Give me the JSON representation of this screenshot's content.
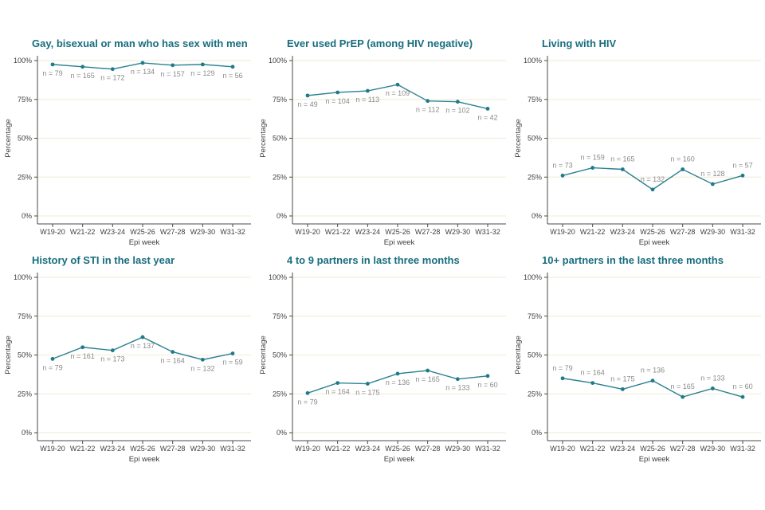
{
  "axes": {
    "xlabel": "Epi week",
    "ylabel": "Percentage",
    "x_categories": [
      "W19-20",
      "W21-22",
      "W23-24",
      "W25-26",
      "W27-28",
      "W29-30",
      "W31-32"
    ],
    "y_tick_labels": [
      "0%",
      "25%",
      "50%",
      "75%",
      "100%"
    ],
    "y_tick_values": [
      0,
      25,
      50,
      75,
      100
    ],
    "ylim": [
      0,
      100
    ],
    "grid": "horizontal-only",
    "legend": "none"
  },
  "style": {
    "background": "#ffffff",
    "line_color": "#2b8291",
    "marker_color": "#1f7a8a",
    "title_color": "#176d7f",
    "n_label_color": "#8a8a8a",
    "axis_text_color": "#3f3f3f",
    "axis_line_color": "#4a4a4a",
    "gridline_color": "#f2eedd"
  },
  "chart_data": [
    {
      "type": "line",
      "title": "Gay, bisexual or man who has sex with men",
      "categories": [
        "W19-20",
        "W21-22",
        "W23-24",
        "W25-26",
        "W27-28",
        "W29-30",
        "W31-32"
      ],
      "values": [
        97.5,
        96,
        94.5,
        98.5,
        97,
        97.5,
        96
      ],
      "n_labels": [
        "n = 79",
        "n = 165",
        "n = 172",
        "n = 134",
        "n = 157",
        "n = 129",
        "n = 56"
      ],
      "xlabel": "Epi week",
      "ylabel": "Percentage",
      "ylim": [
        0,
        100
      ],
      "label_position": "below"
    },
    {
      "type": "line",
      "title": "Ever used PrEP (among HIV negative)",
      "categories": [
        "W19-20",
        "W21-22",
        "W23-24",
        "W25-26",
        "W27-28",
        "W29-30",
        "W31-32"
      ],
      "values": [
        77.5,
        79.5,
        80.5,
        84.5,
        74,
        73.5,
        69
      ],
      "n_labels": [
        "n = 49",
        "n = 104",
        "n = 113",
        "n = 109",
        "n = 112",
        "n = 102",
        "n = 42"
      ],
      "xlabel": "Epi week",
      "ylabel": "Percentage",
      "ylim": [
        0,
        100
      ],
      "label_position": "below"
    },
    {
      "type": "line",
      "title": "Living with HIV",
      "categories": [
        "W19-20",
        "W21-22",
        "W23-24",
        "W25-26",
        "W27-28",
        "W29-30",
        "W31-32"
      ],
      "values": [
        26,
        31,
        30,
        17,
        30,
        20.5,
        26
      ],
      "n_labels": [
        "n = 73",
        "n = 159",
        "n = 165",
        "n = 132",
        "n = 160",
        "n = 128",
        "n = 57"
      ],
      "xlabel": "Epi week",
      "ylabel": "Percentage",
      "ylim": [
        0,
        100
      ],
      "label_position": "above"
    },
    {
      "type": "line",
      "title": "History of STI in the last year",
      "categories": [
        "W19-20",
        "W21-22",
        "W23-24",
        "W25-26",
        "W27-28",
        "W29-30",
        "W31-32"
      ],
      "values": [
        47.5,
        55,
        53,
        61.5,
        52,
        47,
        51
      ],
      "n_labels": [
        "n = 79",
        "n = 161",
        "n = 173",
        "n = 137",
        "n = 164",
        "n = 132",
        "n = 59"
      ],
      "xlabel": "Epi week",
      "ylabel": "Percentage",
      "ylim": [
        0,
        100
      ],
      "label_position": "below"
    },
    {
      "type": "line",
      "title": "4 to 9 partners in last three months",
      "categories": [
        "W19-20",
        "W21-22",
        "W23-24",
        "W25-26",
        "W27-28",
        "W29-30",
        "W31-32"
      ],
      "values": [
        25.5,
        32,
        31.5,
        38,
        40,
        34.5,
        36.5
      ],
      "n_labels": [
        "n = 79",
        "n = 164",
        "n = 175",
        "n = 136",
        "n = 165",
        "n = 133",
        "n = 60"
      ],
      "xlabel": "Epi week",
      "ylabel": "Percentage",
      "ylim": [
        0,
        100
      ],
      "label_position": "below"
    },
    {
      "type": "line",
      "title": "10+ partners in the last three months",
      "categories": [
        "W19-20",
        "W21-22",
        "W23-24",
        "W25-26",
        "W27-28",
        "W29-30",
        "W31-32"
      ],
      "values": [
        35,
        32,
        28,
        33.5,
        23,
        28.5,
        23
      ],
      "n_labels": [
        "n = 79",
        "n = 164",
        "n = 175",
        "n = 136",
        "n = 165",
        "n = 133",
        "n = 60"
      ],
      "xlabel": "Epi week",
      "ylabel": "Percentage",
      "ylim": [
        0,
        100
      ],
      "label_position": "above"
    }
  ]
}
